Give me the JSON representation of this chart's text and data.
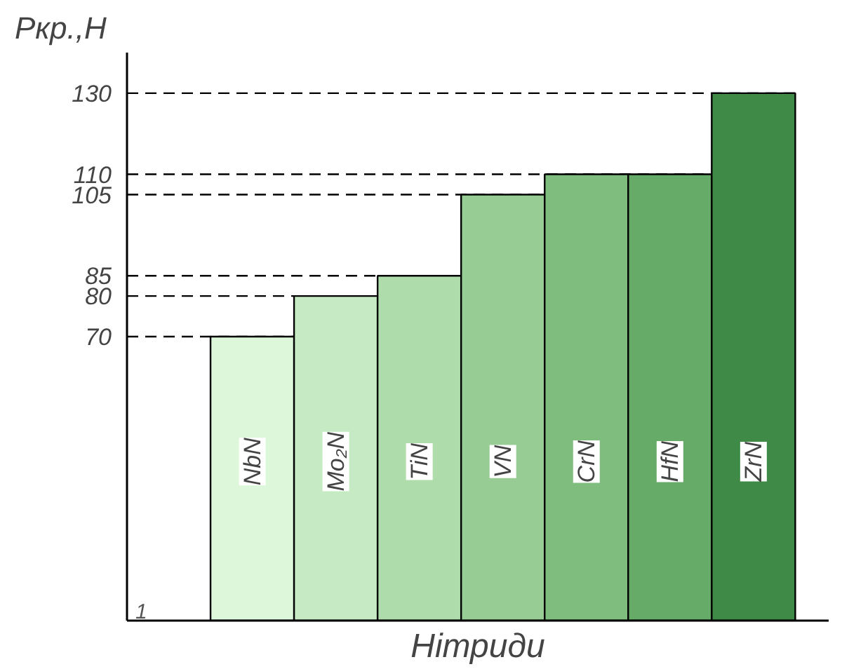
{
  "chart_data": {
    "type": "bar",
    "ylabel": "Pкр.,H",
    "xlabel": "Нітриди",
    "categories": [
      "NbN",
      "Mo₂N",
      "TiN",
      "VN",
      "CrN",
      "HfN",
      "ZrN"
    ],
    "values": [
      70,
      80,
      85,
      105,
      110,
      110,
      130
    ],
    "colors": [
      "#dcf7da",
      "#c6eac3",
      "#aedcab",
      "#97cd94",
      "#7fbd7e",
      "#66ab68",
      "#3f8a46"
    ],
    "ylim": [
      0,
      140
    ],
    "yticks": [
      70,
      80,
      85,
      105,
      110,
      130
    ],
    "tick_labels": "y",
    "grid": false,
    "ref_lines": [
      {
        "axis": "y",
        "value": 70,
        "line_style": "dashed"
      },
      {
        "axis": "y",
        "value": 80,
        "line_style": "dashed"
      },
      {
        "axis": "y",
        "value": 85,
        "line_style": "dashed"
      },
      {
        "axis": "y",
        "value": 105,
        "line_style": "dashed"
      },
      {
        "axis": "y",
        "value": 110,
        "line_style": "dashed"
      },
      {
        "axis": "y",
        "value": 130,
        "line_style": "dashed"
      }
    ],
    "annotations": [
      "1"
    ]
  }
}
